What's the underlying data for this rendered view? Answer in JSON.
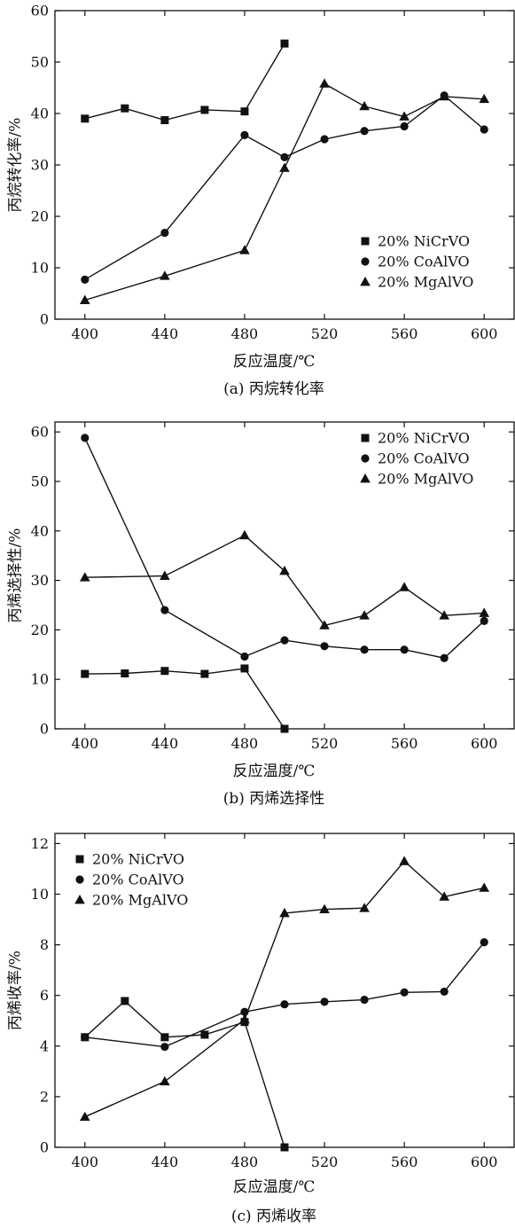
{
  "legend_labels": [
    "20% NiCrVO",
    "20% CoAlVO",
    "20% MgAlVO"
  ],
  "chart_data": [
    {
      "type": "line",
      "caption": "(a) 丙烷转化率",
      "xlabel": "反应温度/℃",
      "ylabel": "丙烷转化率/%",
      "xlim": [
        385,
        615
      ],
      "ylim": [
        0,
        60
      ],
      "xticks": [
        400,
        440,
        480,
        520,
        560,
        600
      ],
      "yticks": [
        0,
        10,
        20,
        30,
        40,
        50,
        60
      ],
      "legend_position": "bottom-right",
      "grid": false,
      "series": [
        {
          "name": "20% NiCrVO",
          "marker": "square",
          "x": [
            400,
            420,
            440,
            460,
            480,
            500
          ],
          "y": [
            39,
            41,
            38.7,
            40.7,
            40.4,
            53.6
          ]
        },
        {
          "name": "20% CoAlVO",
          "marker": "circle",
          "x": [
            400,
            440,
            480,
            500,
            520,
            540,
            560,
            580,
            600
          ],
          "y": [
            7.7,
            16.8,
            35.8,
            31.5,
            35,
            36.6,
            37.5,
            43.5,
            36.9
          ]
        },
        {
          "name": "20% MgAlVO",
          "marker": "triangle",
          "x": [
            400,
            440,
            480,
            500,
            520,
            540,
            560,
            580,
            600
          ],
          "y": [
            3.7,
            8.4,
            13.4,
            29.4,
            45.8,
            41.4,
            39.4,
            43.3,
            42.8
          ]
        }
      ]
    },
    {
      "type": "line",
      "caption": "(b) 丙烯选择性",
      "xlabel": "反应温度/℃",
      "ylabel": "丙烯选择性/%",
      "xlim": [
        385,
        615
      ],
      "ylim": [
        0,
        62
      ],
      "xticks": [
        400,
        440,
        480,
        520,
        560,
        600
      ],
      "yticks": [
        0,
        10,
        20,
        30,
        40,
        50,
        60
      ],
      "legend_position": "top-right",
      "grid": false,
      "series": [
        {
          "name": "20% NiCrVO",
          "marker": "square",
          "x": [
            400,
            420,
            440,
            460,
            480,
            500
          ],
          "y": [
            11.1,
            11.2,
            11.7,
            11.1,
            12.2,
            0
          ]
        },
        {
          "name": "20% CoAlVO",
          "marker": "circle",
          "x": [
            400,
            440,
            480,
            500,
            520,
            540,
            560,
            580,
            600
          ],
          "y": [
            58.8,
            24,
            14.6,
            17.9,
            16.7,
            16,
            16,
            14.3,
            21.8
          ]
        },
        {
          "name": "20% MgAlVO",
          "marker": "triangle",
          "x": [
            400,
            440,
            480,
            500,
            520,
            540,
            560,
            580,
            600
          ],
          "y": [
            30.6,
            30.9,
            39.1,
            31.9,
            20.9,
            22.9,
            28.6,
            22.9,
            23.4
          ]
        }
      ]
    },
    {
      "type": "line",
      "caption": "(c) 丙烯收率",
      "xlabel": "反应温度/℃",
      "ylabel": "丙烯收率/%",
      "xlim": [
        385,
        615
      ],
      "ylim": [
        0,
        12.4
      ],
      "xticks": [
        400,
        440,
        480,
        520,
        560,
        600
      ],
      "yticks": [
        0,
        2,
        4,
        6,
        8,
        10,
        12
      ],
      "legend_position": "top-left",
      "grid": false,
      "series": [
        {
          "name": "20% NiCrVO",
          "marker": "square",
          "x": [
            400,
            420,
            440,
            460,
            480,
            500
          ],
          "y": [
            4.35,
            5.78,
            4.35,
            4.45,
            4.95,
            0
          ]
        },
        {
          "name": "20% CoAlVO",
          "marker": "circle",
          "x": [
            400,
            440,
            480,
            500,
            520,
            540,
            560,
            580,
            600
          ],
          "y": [
            4.35,
            3.97,
            5.35,
            5.65,
            5.75,
            5.83,
            6.12,
            6.15,
            8.1
          ]
        },
        {
          "name": "20% MgAlVO",
          "marker": "triangle",
          "x": [
            400,
            440,
            480,
            500,
            520,
            540,
            560,
            580,
            600
          ],
          "y": [
            1.2,
            2.6,
            5.05,
            9.25,
            9.4,
            9.45,
            11.3,
            9.9,
            10.25
          ]
        }
      ]
    }
  ]
}
